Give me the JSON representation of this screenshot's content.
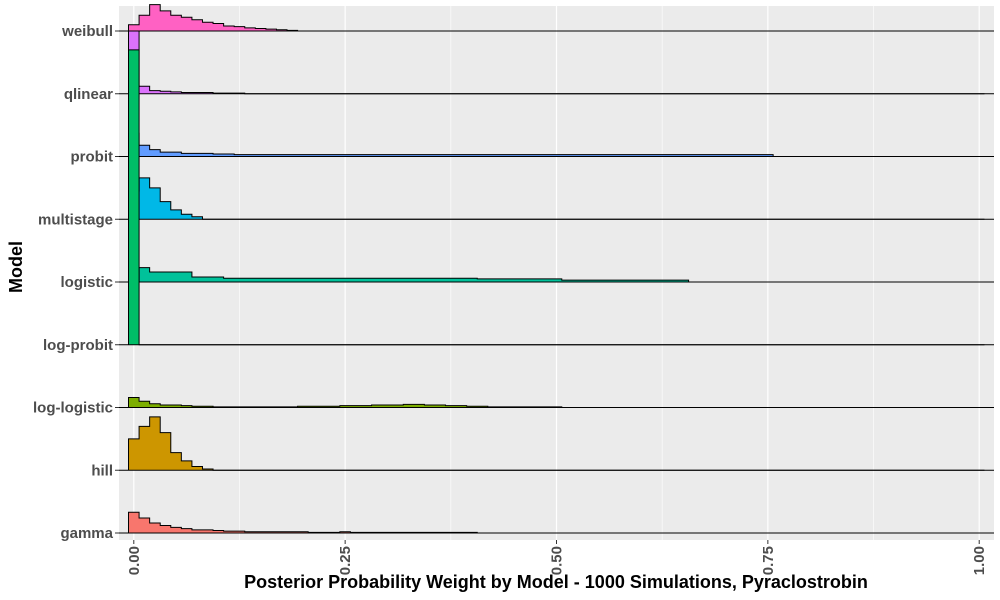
{
  "chart_data": {
    "type": "ridgeline-histogram",
    "xlabel": "Posterior Probability Weight by Model - 1000 Simulations, Pyraclostrobin",
    "ylabel": "Model",
    "xlim": [
      -0.0175,
      1.0175
    ],
    "x_ticks": [
      0.0,
      0.25,
      0.5,
      0.75,
      1.0
    ],
    "x_tick_labels": [
      "0.00",
      "0.25",
      "0.50",
      "0.75",
      "1.00"
    ],
    "grid": true,
    "legend": "none",
    "bin_width": 0.0125,
    "bin_start": -0.00625,
    "colors": {
      "panel_bg": "#ebebeb",
      "grid": "#ffffff",
      "axis_text": "#4d4d4d",
      "outline": "#000000"
    },
    "series": [
      {
        "name": "gamma",
        "color": "#F8766D",
        "counts": [
          0.33,
          0.24,
          0.16,
          0.12,
          0.09,
          0.07,
          0.05,
          0.05,
          0.04,
          0.03,
          0.03,
          0.02,
          0.02,
          0.02,
          0.02,
          0.02,
          0.02,
          0.01,
          0.01,
          0.01,
          0.02,
          0.01,
          0.01,
          0.01,
          0.01,
          0.01,
          0.01,
          0.01,
          0.01,
          0.01,
          0.01,
          0.01,
          0.01,
          0.0,
          0.0,
          0.0,
          0.0,
          0.0,
          0.0,
          0.0,
          0.0,
          0.0,
          0.0,
          0.0,
          0.0,
          0.0,
          0.0,
          0.0,
          0.0,
          0.0,
          0.0,
          0.0,
          0.0,
          0.0,
          0.0,
          0.0,
          0.0,
          0.0,
          0.0,
          0.0,
          0.0,
          0.0,
          0.0,
          0.0,
          0.0,
          0.0,
          0.0,
          0.0,
          0.0,
          0.0,
          0.0,
          0.0,
          0.0,
          0.0,
          0.0,
          0.0,
          0.0,
          0.0,
          0.0,
          0.0,
          0.0
        ]
      },
      {
        "name": "hill",
        "color": "#CD9600",
        "counts": [
          0.5,
          0.7,
          0.85,
          0.6,
          0.28,
          0.15,
          0.06,
          0.02,
          0.0,
          0.0,
          0.0,
          0.0,
          0.0,
          0.0,
          0.0,
          0.0,
          0.0,
          0.0,
          0.0,
          0.0,
          0.0,
          0.0,
          0.0,
          0.0,
          0.0,
          0.0,
          0.0,
          0.0,
          0.0,
          0.0,
          0.0,
          0.0,
          0.0,
          0.0,
          0.0,
          0.0,
          0.0,
          0.0,
          0.0,
          0.0,
          0.0,
          0.0,
          0.0,
          0.0,
          0.0,
          0.0,
          0.0,
          0.0,
          0.0,
          0.0,
          0.0,
          0.0,
          0.0,
          0.0,
          0.0,
          0.0,
          0.0,
          0.0,
          0.0,
          0.0,
          0.0,
          0.0,
          0.0,
          0.0,
          0.0,
          0.0,
          0.0,
          0.0,
          0.0,
          0.0,
          0.0,
          0.0,
          0.0,
          0.0,
          0.0,
          0.0,
          0.0,
          0.0,
          0.0,
          0.0,
          0.0
        ]
      },
      {
        "name": "log-logistic",
        "color": "#7CAE00",
        "counts": [
          0.16,
          0.1,
          0.06,
          0.04,
          0.04,
          0.03,
          0.02,
          0.02,
          0.01,
          0.01,
          0.01,
          0.01,
          0.01,
          0.01,
          0.01,
          0.01,
          0.02,
          0.02,
          0.02,
          0.02,
          0.03,
          0.03,
          0.03,
          0.04,
          0.04,
          0.04,
          0.05,
          0.05,
          0.04,
          0.04,
          0.03,
          0.03,
          0.02,
          0.02,
          0.01,
          0.01,
          0.01,
          0.01,
          0.01,
          0.01,
          0.01,
          0.0,
          0.0,
          0.0,
          0.0,
          0.0,
          0.0,
          0.0,
          0.0,
          0.0,
          0.0,
          0.0,
          0.0,
          0.0,
          0.0,
          0.0,
          0.0,
          0.0,
          0.0,
          0.0,
          0.0,
          0.0,
          0.0,
          0.0,
          0.0,
          0.0,
          0.0,
          0.0,
          0.0,
          0.0,
          0.0,
          0.0,
          0.0,
          0.0,
          0.0,
          0.0,
          0.0,
          0.0,
          0.0,
          0.0,
          0.0
        ]
      },
      {
        "name": "log-probit",
        "color": "#00BE67",
        "counts": [
          4.7,
          0.0,
          0.0,
          0.0,
          0.0,
          0.0,
          0.0,
          0.0,
          0.0,
          0.0,
          0.0,
          0.0,
          0.0,
          0.0,
          0.0,
          0.0,
          0.0,
          0.0,
          0.0,
          0.0,
          0.0,
          0.0,
          0.0,
          0.0,
          0.0,
          0.0,
          0.0,
          0.0,
          0.0,
          0.0,
          0.0,
          0.0,
          0.0,
          0.0,
          0.0,
          0.0,
          0.0,
          0.0,
          0.0,
          0.0,
          0.0,
          0.0,
          0.0,
          0.0,
          0.0,
          0.0,
          0.0,
          0.0,
          0.0,
          0.0,
          0.0,
          0.0,
          0.0,
          0.0,
          0.0,
          0.0,
          0.0,
          0.0,
          0.0,
          0.0,
          0.0,
          0.0,
          0.0,
          0.0,
          0.0,
          0.0,
          0.0,
          0.0,
          0.0,
          0.0,
          0.0,
          0.0,
          0.0,
          0.0,
          0.0,
          0.0,
          0.0,
          0.0,
          0.0,
          0.0,
          0.0
        ]
      },
      {
        "name": "logistic",
        "color": "#00C19A",
        "counts": [
          0.0,
          0.23,
          0.16,
          0.16,
          0.16,
          0.16,
          0.08,
          0.08,
          0.08,
          0.06,
          0.06,
          0.06,
          0.06,
          0.06,
          0.06,
          0.06,
          0.06,
          0.06,
          0.06,
          0.06,
          0.06,
          0.06,
          0.06,
          0.06,
          0.06,
          0.06,
          0.06,
          0.06,
          0.06,
          0.06,
          0.06,
          0.06,
          0.06,
          0.05,
          0.05,
          0.05,
          0.05,
          0.05,
          0.05,
          0.05,
          0.05,
          0.03,
          0.03,
          0.03,
          0.03,
          0.03,
          0.03,
          0.03,
          0.03,
          0.03,
          0.03,
          0.03,
          0.03,
          0.0,
          0.0,
          0.0,
          0.0,
          0.0,
          0.0,
          0.0,
          0.0,
          0.0,
          0.0,
          0.0,
          0.0,
          0.0,
          0.0,
          0.0,
          0.0,
          0.0,
          0.0,
          0.0,
          0.0,
          0.0,
          0.0,
          0.0,
          0.0,
          0.0,
          0.0,
          0.0,
          0.0
        ]
      },
      {
        "name": "multistage",
        "color": "#00B8E7",
        "counts": [
          0.45,
          0.66,
          0.5,
          0.28,
          0.15,
          0.08,
          0.04,
          0.0,
          0.0,
          0.0,
          0.0,
          0.0,
          0.0,
          0.0,
          0.0,
          0.0,
          0.0,
          0.0,
          0.0,
          0.0,
          0.0,
          0.0,
          0.0,
          0.0,
          0.0,
          0.0,
          0.0,
          0.0,
          0.0,
          0.0,
          0.0,
          0.0,
          0.0,
          0.0,
          0.0,
          0.0,
          0.0,
          0.0,
          0.0,
          0.0,
          0.0,
          0.0,
          0.0,
          0.0,
          0.0,
          0.0,
          0.0,
          0.0,
          0.0,
          0.0,
          0.0,
          0.0,
          0.0,
          0.0,
          0.0,
          0.0,
          0.0,
          0.0,
          0.0,
          0.0,
          0.0,
          0.0,
          0.0,
          0.0,
          0.0,
          0.0,
          0.0,
          0.0,
          0.0,
          0.0,
          0.0,
          0.0,
          0.0,
          0.0,
          0.0,
          0.0,
          0.0,
          0.0,
          0.0,
          0.0,
          0.0
        ]
      },
      {
        "name": "probit",
        "color": "#619CFF",
        "counts": [
          0.37,
          0.18,
          0.11,
          0.07,
          0.07,
          0.05,
          0.05,
          0.05,
          0.04,
          0.04,
          0.03,
          0.03,
          0.03,
          0.03,
          0.03,
          0.03,
          0.03,
          0.03,
          0.03,
          0.03,
          0.03,
          0.03,
          0.03,
          0.03,
          0.03,
          0.03,
          0.03,
          0.03,
          0.03,
          0.03,
          0.03,
          0.03,
          0.03,
          0.03,
          0.03,
          0.03,
          0.03,
          0.03,
          0.03,
          0.03,
          0.03,
          0.03,
          0.03,
          0.03,
          0.03,
          0.03,
          0.03,
          0.03,
          0.03,
          0.03,
          0.03,
          0.03,
          0.03,
          0.03,
          0.03,
          0.03,
          0.03,
          0.03,
          0.03,
          0.03,
          0.03,
          0.0,
          0.0,
          0.0,
          0.0,
          0.0,
          0.0,
          0.0,
          0.0,
          0.0,
          0.0,
          0.0,
          0.0,
          0.0,
          0.0,
          0.0,
          0.0,
          0.0,
          0.0,
          0.0,
          0.0
        ]
      },
      {
        "name": "qlinear",
        "color": "#DB72FB",
        "counts": [
          1.0,
          0.12,
          0.05,
          0.04,
          0.03,
          0.02,
          0.02,
          0.02,
          0.01,
          0.01,
          0.01,
          0.0,
          0.0,
          0.0,
          0.0,
          0.0,
          0.0,
          0.0,
          0.0,
          0.0,
          0.0,
          0.0,
          0.0,
          0.0,
          0.0,
          0.0,
          0.0,
          0.0,
          0.0,
          0.0,
          0.0,
          0.0,
          0.0,
          0.0,
          0.0,
          0.0,
          0.0,
          0.0,
          0.0,
          0.0,
          0.0,
          0.0,
          0.0,
          0.0,
          0.0,
          0.0,
          0.0,
          0.0,
          0.0,
          0.0,
          0.0,
          0.0,
          0.0,
          0.0,
          0.0,
          0.0,
          0.0,
          0.0,
          0.0,
          0.0,
          0.0,
          0.0,
          0.0,
          0.0,
          0.0,
          0.0,
          0.0,
          0.0,
          0.0,
          0.0,
          0.0,
          0.0,
          0.0,
          0.0,
          0.0,
          0.0,
          0.0,
          0.0,
          0.0,
          0.0,
          0.0
        ]
      },
      {
        "name": "weibull",
        "color": "#FF61C3",
        "counts": [
          0.1,
          0.25,
          0.42,
          0.32,
          0.25,
          0.22,
          0.18,
          0.14,
          0.12,
          0.08,
          0.07,
          0.05,
          0.04,
          0.03,
          0.02,
          0.01,
          0.0,
          0.0,
          0.0,
          0.0,
          0.0,
          0.0,
          0.0,
          0.0,
          0.0,
          0.0,
          0.0,
          0.0,
          0.0,
          0.0,
          0.0,
          0.0,
          0.0,
          0.0,
          0.0,
          0.0,
          0.0,
          0.0,
          0.0,
          0.0,
          0.0,
          0.0,
          0.0,
          0.0,
          0.0,
          0.0,
          0.0,
          0.0,
          0.0,
          0.0,
          0.0,
          0.0,
          0.0,
          0.0,
          0.0,
          0.0,
          0.0,
          0.0,
          0.0,
          0.0,
          0.0,
          0.0,
          0.0,
          0.0,
          0.0,
          0.0,
          0.0,
          0.0,
          0.0,
          0.0,
          0.0,
          0.0,
          0.0,
          0.0,
          0.0,
          0.0,
          0.0,
          0.0,
          0.0,
          0.0,
          0.0
        ]
      }
    ]
  }
}
